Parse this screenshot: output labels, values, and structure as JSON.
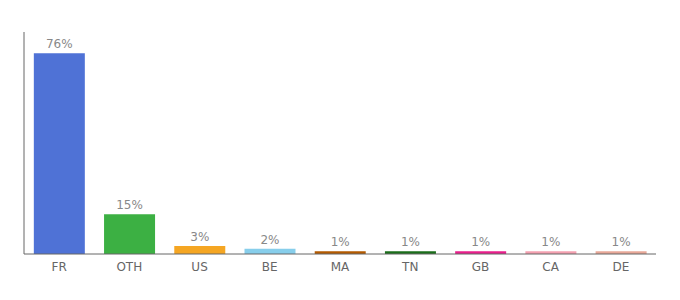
{
  "chart_data": {
    "type": "bar",
    "categories": [
      "FR",
      "OTH",
      "US",
      "BE",
      "MA",
      "TN",
      "GB",
      "CA",
      "DE"
    ],
    "values": [
      76,
      15,
      3,
      2,
      1,
      1,
      1,
      1,
      1
    ],
    "value_labels": [
      "76%",
      "15%",
      "3%",
      "2%",
      "1%",
      "1%",
      "1%",
      "1%",
      "1%"
    ],
    "data_labels": true,
    "colors": [
      "#4f72d6",
      "#3cb043",
      "#f5a623",
      "#87ceeb",
      "#b35a00",
      "#1a6e1a",
      "#e91e8c",
      "#f4a0b0",
      "#e8a898"
    ],
    "ylim": [
      0,
      84
    ],
    "grid": false,
    "tick_labels": "x"
  }
}
